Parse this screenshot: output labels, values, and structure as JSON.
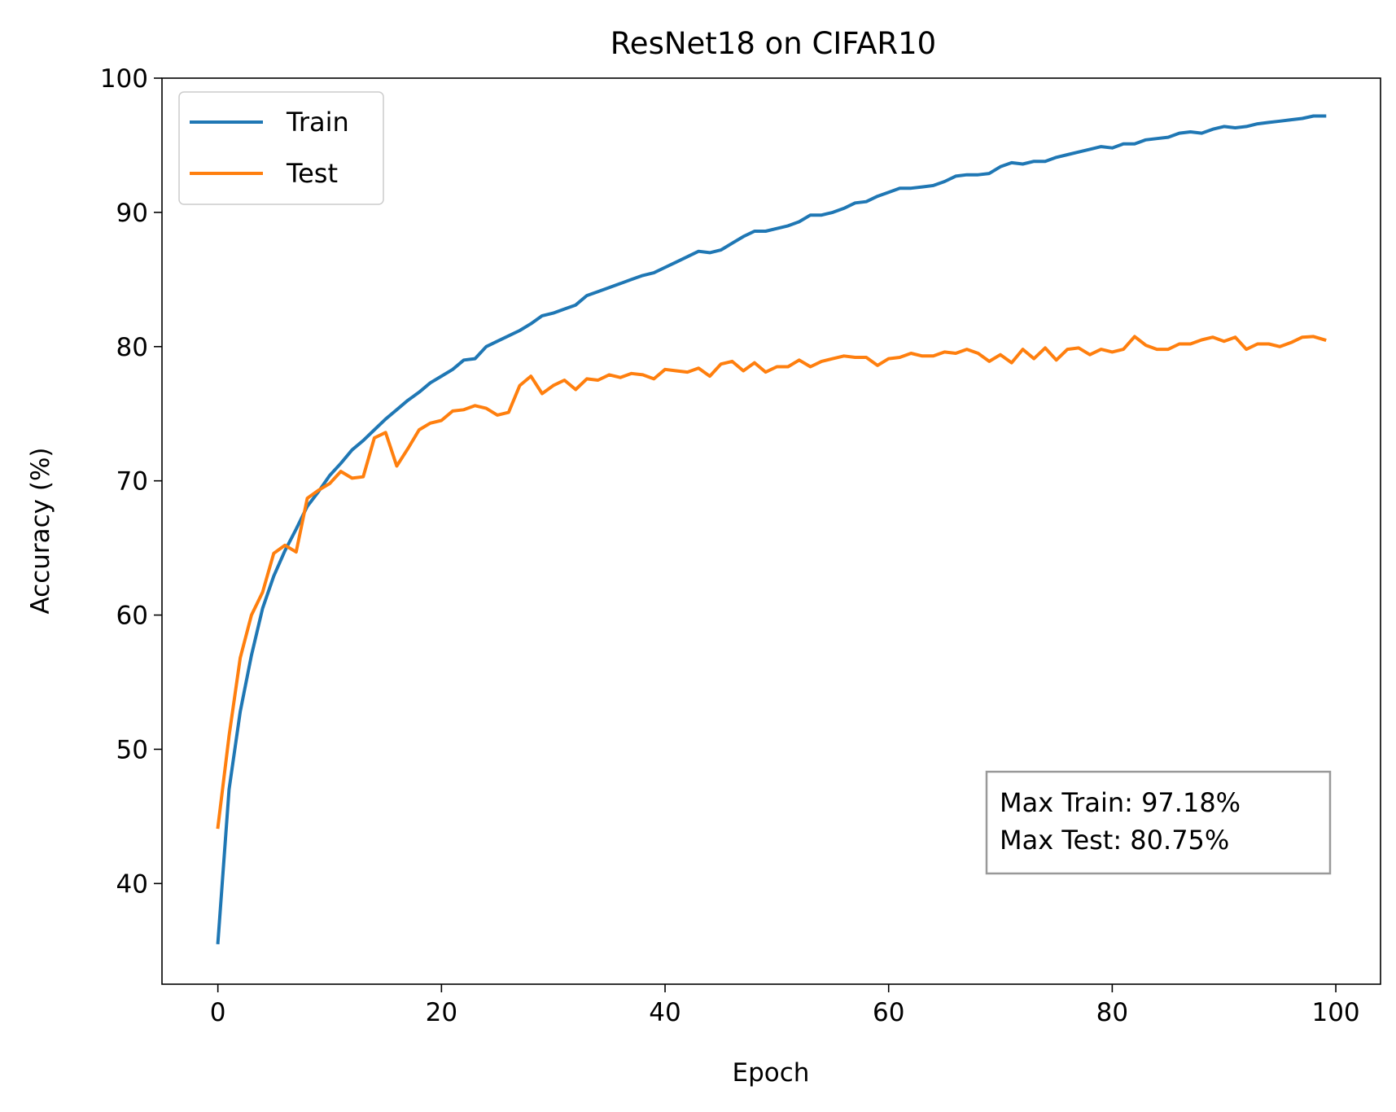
{
  "chart_data": {
    "type": "line",
    "title": "ResNet18 on CIFAR10",
    "xlabel": "Epoch",
    "ylabel": "Accuracy (%)",
    "xlim": [
      -5,
      104
    ],
    "ylim": [
      32.5,
      100
    ],
    "xticks": [
      0,
      20,
      40,
      60,
      80,
      100
    ],
    "yticks": [
      40,
      50,
      60,
      70,
      80,
      90,
      100
    ],
    "grid": false,
    "legend_position": "top-left",
    "x": [
      0,
      1,
      2,
      3,
      4,
      5,
      6,
      7,
      8,
      9,
      10,
      11,
      12,
      13,
      14,
      15,
      16,
      17,
      18,
      19,
      20,
      21,
      22,
      23,
      24,
      25,
      26,
      27,
      28,
      29,
      30,
      31,
      32,
      33,
      34,
      35,
      36,
      37,
      38,
      39,
      40,
      41,
      42,
      43,
      44,
      45,
      46,
      47,
      48,
      49,
      50,
      51,
      52,
      53,
      54,
      55,
      56,
      57,
      58,
      59,
      60,
      61,
      62,
      63,
      64,
      65,
      66,
      67,
      68,
      69,
      70,
      71,
      72,
      73,
      74,
      75,
      76,
      77,
      78,
      79,
      80,
      81,
      82,
      83,
      84,
      85,
      86,
      87,
      88,
      89,
      90,
      91,
      92,
      93,
      94,
      95,
      96,
      97,
      98,
      99
    ],
    "series": [
      {
        "name": "Train",
        "color": "#1f77b4",
        "values": [
          35.6,
          47.0,
          52.8,
          57.0,
          60.5,
          62.9,
          64.8,
          66.4,
          68.1,
          69.2,
          70.4,
          71.3,
          72.3,
          73.0,
          73.8,
          74.6,
          75.3,
          76.0,
          76.6,
          77.3,
          77.8,
          78.3,
          79.0,
          79.1,
          80.0,
          80.4,
          80.8,
          81.2,
          81.7,
          82.3,
          82.5,
          82.8,
          83.1,
          83.8,
          84.1,
          84.4,
          84.7,
          85.0,
          85.3,
          85.5,
          85.9,
          86.3,
          86.7,
          87.1,
          87.0,
          87.2,
          87.7,
          88.2,
          88.6,
          88.6,
          88.8,
          89.0,
          89.3,
          89.8,
          89.8,
          90.0,
          90.3,
          90.7,
          90.8,
          91.2,
          91.5,
          91.8,
          91.8,
          91.9,
          92.0,
          92.3,
          92.7,
          92.8,
          92.8,
          92.9,
          93.4,
          93.7,
          93.6,
          93.8,
          93.8,
          94.1,
          94.3,
          94.5,
          94.7,
          94.9,
          94.8,
          95.1,
          95.1,
          95.4,
          95.5,
          95.6,
          95.9,
          96.0,
          95.9,
          96.2,
          96.4,
          96.3,
          96.4,
          96.6,
          96.7,
          96.8,
          96.9,
          97.0,
          97.18,
          97.18
        ]
      },
      {
        "name": "Test",
        "color": "#ff7f0e",
        "values": [
          44.2,
          51.0,
          56.8,
          60.0,
          61.7,
          64.6,
          65.2,
          64.7,
          68.7,
          69.3,
          69.8,
          70.7,
          70.2,
          70.3,
          73.2,
          73.6,
          71.1,
          72.4,
          73.8,
          74.3,
          74.5,
          75.2,
          75.3,
          75.6,
          75.4,
          74.9,
          75.1,
          77.1,
          77.8,
          76.5,
          77.1,
          77.5,
          76.8,
          77.6,
          77.5,
          77.9,
          77.7,
          78.0,
          77.9,
          77.6,
          78.3,
          78.2,
          78.1,
          78.4,
          77.8,
          78.7,
          78.9,
          78.2,
          78.8,
          78.1,
          78.5,
          78.5,
          79.0,
          78.5,
          78.9,
          79.1,
          79.3,
          79.2,
          79.2,
          78.6,
          79.1,
          79.2,
          79.5,
          79.3,
          79.3,
          79.6,
          79.5,
          79.8,
          79.5,
          78.9,
          79.4,
          78.8,
          79.8,
          79.1,
          79.9,
          79.0,
          79.8,
          79.9,
          79.4,
          79.8,
          79.6,
          79.8,
          80.75,
          80.1,
          79.8,
          79.8,
          80.2,
          80.2,
          80.5,
          80.7,
          80.4,
          80.7,
          79.8,
          80.2,
          80.2,
          80.0,
          80.3,
          80.7,
          80.75,
          80.5
        ]
      }
    ],
    "annotation": {
      "lines": [
        "Max Train: 97.18%",
        "Max Test: 80.75%"
      ],
      "position": "bottom-right"
    }
  }
}
